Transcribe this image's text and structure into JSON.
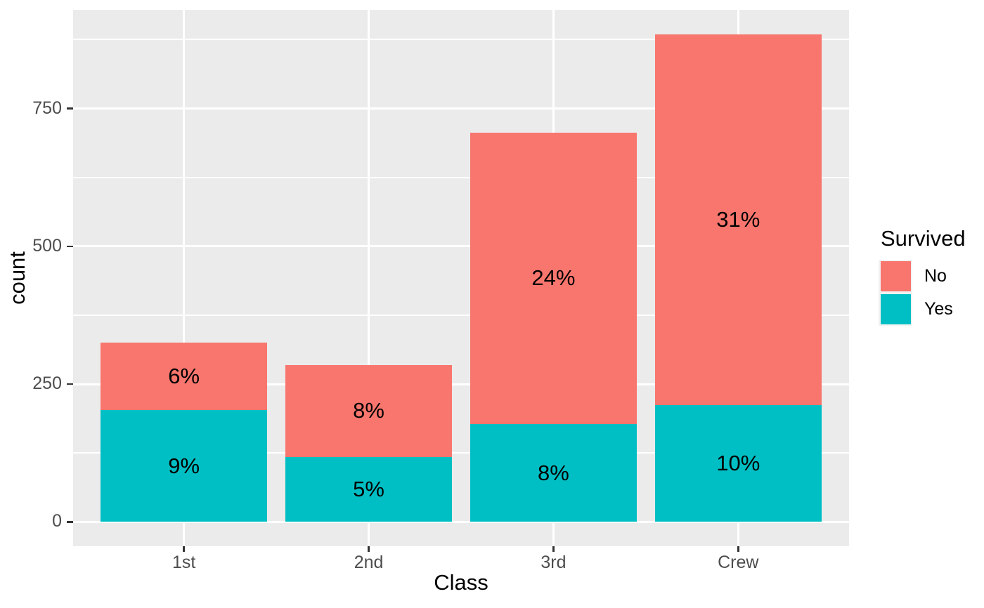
{
  "chart_data": {
    "type": "bar",
    "stacked": true,
    "title": "",
    "xlabel": "Class",
    "ylabel": "count",
    "categories": [
      "1st",
      "2nd",
      "3rd",
      "Crew"
    ],
    "series": [
      {
        "name": "No",
        "color": "#F8766D",
        "values": [
          122,
          167,
          528,
          673
        ],
        "percent_labels": [
          "6%",
          "8%",
          "24%",
          "31%"
        ]
      },
      {
        "name": "Yes",
        "color": "#00BFC4",
        "values": [
          203,
          118,
          178,
          212
        ],
        "percent_labels": [
          "9%",
          "5%",
          "8%",
          "10%"
        ]
      }
    ],
    "stack_top_series": "No",
    "category_totals": [
      325,
      285,
      706,
      885
    ],
    "y_ticks": [
      0,
      250,
      500,
      750
    ],
    "y_tick_labels": [
      "0",
      "250",
      "500",
      "750"
    ],
    "y_minor_ticks": [
      125,
      375,
      625,
      875
    ],
    "ylim": [
      -44,
      929
    ],
    "grid": true,
    "legend": {
      "title": "Survived",
      "position": "right",
      "items": [
        "No",
        "Yes"
      ]
    },
    "theme": {
      "panel_bg": "#EBEBEB",
      "grid_color": "#FFFFFF",
      "axis_text_color": "#4D4D4D",
      "tick_color": "#333333",
      "title_color": "#000000",
      "bar_label_color": "#000000"
    }
  }
}
